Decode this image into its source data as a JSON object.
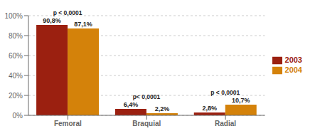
{
  "chart_data": {
    "type": "bar",
    "categories": [
      "Femoral",
      "Braquial",
      "Radial"
    ],
    "series": [
      {
        "name": "2003",
        "color": "#9B2010",
        "values": [
          90.8,
          6.4,
          2.8
        ],
        "value_labels": [
          "90,8%",
          "6,4%",
          "2,8%"
        ]
      },
      {
        "name": "2004",
        "color": "#D4820A",
        "values": [
          87.1,
          2.2,
          10.7
        ],
        "value_labels": [
          "87,1%",
          "2,2%",
          "10,7%"
        ]
      }
    ],
    "annotations": [
      "p < 0,0001",
      "p< 0,0001",
      "p < 0,0001"
    ],
    "ylim": [
      0,
      100
    ],
    "yticks": [
      {
        "value": 0,
        "label": "0%"
      },
      {
        "value": 20,
        "label": "20%"
      },
      {
        "value": 40,
        "label": "40%"
      },
      {
        "value": 60,
        "label": "60%"
      },
      {
        "value": 80,
        "label": "80%"
      },
      {
        "value": 100,
        "label": "100%"
      }
    ],
    "grid": true,
    "legend": "right",
    "data_labels": true
  }
}
